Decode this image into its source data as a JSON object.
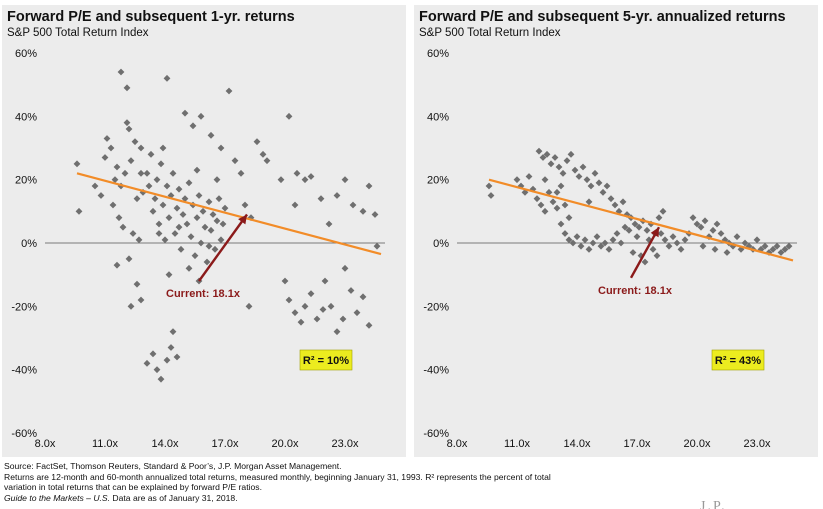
{
  "chart_data": [
    {
      "type": "scatter",
      "title": "Forward P/E and subsequent 1-yr. returns",
      "subtitle": "S&P 500 Total Return Index",
      "xlabel": "",
      "ylabel": "",
      "xlim": [
        8,
        25
      ],
      "ylim": [
        -60,
        60
      ],
      "x_ticks": [
        8,
        11,
        14,
        17,
        20,
        23
      ],
      "x_tick_labels": [
        "8.0x",
        "11.0x",
        "14.0x",
        "17.0x",
        "20.0x",
        "23.0x"
      ],
      "y_ticks": [
        60,
        40,
        20,
        0,
        -20,
        -40,
        -60
      ],
      "y_tick_labels": [
        "60%",
        "40%",
        "20%",
        "0%",
        "-20%",
        "-40%",
        "-60%"
      ],
      "trendline": {
        "x": [
          9.6,
          24.8
        ],
        "y": [
          22,
          -3.5
        ]
      },
      "current": {
        "x": 18.1,
        "label": "Current: 18.1x",
        "arrow_from": [
          15.7,
          -12
        ],
        "arrow_to": [
          18.1,
          9
        ]
      },
      "r_squared_label": "R² = 10%",
      "points": [
        [
          9.6,
          25
        ],
        [
          9.7,
          10
        ],
        [
          10.5,
          18
        ],
        [
          10.8,
          15
        ],
        [
          11,
          27
        ],
        [
          11.1,
          33
        ],
        [
          11.3,
          30
        ],
        [
          11.4,
          12
        ],
        [
          11.5,
          20
        ],
        [
          11.6,
          24
        ],
        [
          11.7,
          8
        ],
        [
          11.8,
          18
        ],
        [
          11.9,
          5
        ],
        [
          12,
          22
        ],
        [
          12.1,
          38
        ],
        [
          12.2,
          36
        ],
        [
          12.3,
          26
        ],
        [
          12.4,
          3
        ],
        [
          12.2,
          -5
        ],
        [
          12.5,
          32
        ],
        [
          12.6,
          14
        ],
        [
          12.7,
          1
        ],
        [
          12.8,
          22
        ],
        [
          12.9,
          16
        ],
        [
          11.6,
          -7
        ],
        [
          11.8,
          54
        ],
        [
          12.1,
          49
        ],
        [
          12.3,
          -20
        ],
        [
          12.6,
          -13
        ],
        [
          12.8,
          -18
        ],
        [
          13.1,
          -38
        ],
        [
          13.4,
          -35
        ],
        [
          13.6,
          -40
        ],
        [
          13.8,
          -43
        ],
        [
          14.1,
          -37
        ],
        [
          14.3,
          -33
        ],
        [
          14.6,
          -36
        ],
        [
          14.4,
          -28
        ],
        [
          14,
          1
        ],
        [
          14.1,
          52
        ],
        [
          13.1,
          22
        ],
        [
          13.2,
          18
        ],
        [
          13.3,
          28
        ],
        [
          13.4,
          10
        ],
        [
          13.5,
          14
        ],
        [
          13.6,
          20
        ],
        [
          13.7,
          6
        ],
        [
          13.8,
          25
        ],
        [
          13.9,
          12
        ],
        [
          14.1,
          18
        ],
        [
          14.2,
          8
        ],
        [
          14.3,
          15
        ],
        [
          14.4,
          22
        ],
        [
          14.5,
          3
        ],
        [
          14.6,
          11
        ],
        [
          14.7,
          17
        ],
        [
          14.8,
          -2
        ],
        [
          14.9,
          9
        ],
        [
          15,
          14
        ],
        [
          15.1,
          6
        ],
        [
          15.2,
          19
        ],
        [
          15.3,
          2
        ],
        [
          15.4,
          12
        ],
        [
          15.5,
          -4
        ],
        [
          15.6,
          8
        ],
        [
          15.7,
          15
        ],
        [
          15.8,
          0
        ],
        [
          15.9,
          10
        ],
        [
          16,
          5
        ],
        [
          16.1,
          -6
        ],
        [
          16.2,
          13
        ],
        [
          16.3,
          4
        ],
        [
          16.4,
          9
        ],
        [
          16.5,
          -2
        ],
        [
          16.6,
          7
        ],
        [
          16.7,
          14
        ],
        [
          16.8,
          1
        ],
        [
          16.9,
          6
        ],
        [
          17,
          11
        ],
        [
          13.7,
          3
        ],
        [
          14.2,
          -10
        ],
        [
          14.7,
          5
        ],
        [
          15.2,
          -8
        ],
        [
          15.7,
          -12
        ],
        [
          16.2,
          -1
        ],
        [
          15,
          41
        ],
        [
          15.4,
          37
        ],
        [
          15.8,
          40
        ],
        [
          16.3,
          34
        ],
        [
          16.8,
          30
        ],
        [
          17.2,
          48
        ],
        [
          17.5,
          26
        ],
        [
          17.8,
          22
        ],
        [
          18,
          12
        ],
        [
          18.3,
          8
        ],
        [
          18.6,
          32
        ],
        [
          18.9,
          28
        ],
        [
          19.1,
          26
        ],
        [
          18.2,
          -20
        ],
        [
          19.8,
          20
        ],
        [
          20.2,
          40
        ],
        [
          20.6,
          22
        ],
        [
          21,
          20
        ],
        [
          21.3,
          21
        ],
        [
          20.5,
          12
        ],
        [
          21.8,
          14
        ],
        [
          22.2,
          6
        ],
        [
          22.6,
          15
        ],
        [
          23,
          20
        ],
        [
          23.4,
          12
        ],
        [
          23.9,
          10
        ],
        [
          24.2,
          18
        ],
        [
          24.5,
          9
        ],
        [
          20,
          -12
        ],
        [
          20.2,
          -18
        ],
        [
          20.5,
          -22
        ],
        [
          20.8,
          -25
        ],
        [
          21,
          -20
        ],
        [
          21.3,
          -16
        ],
        [
          21.6,
          -24
        ],
        [
          22,
          -12
        ],
        [
          22.3,
          -20
        ],
        [
          22.6,
          -28
        ],
        [
          23,
          -8
        ],
        [
          23.3,
          -15
        ],
        [
          23.6,
          -22
        ],
        [
          23.9,
          -17
        ],
        [
          24.2,
          -26
        ],
        [
          24.6,
          -1
        ],
        [
          22.9,
          -24
        ],
        [
          21.9,
          -21
        ],
        [
          12.8,
          30
        ],
        [
          13.9,
          30
        ],
        [
          15.6,
          23
        ],
        [
          16.6,
          20
        ]
      ]
    },
    {
      "type": "scatter",
      "title": "Forward P/E and subsequent 5-yr. annualized returns",
      "subtitle": "S&P 500 Total Return Index",
      "xlabel": "",
      "ylabel": "",
      "xlim": [
        8,
        25
      ],
      "ylim": [
        -60,
        60
      ],
      "x_ticks": [
        8,
        11,
        14,
        17,
        20,
        23
      ],
      "x_tick_labels": [
        "8.0x",
        "11.0x",
        "14.0x",
        "17.0x",
        "20.0x",
        "23.0x"
      ],
      "y_ticks": [
        60,
        40,
        20,
        0,
        -20,
        -40,
        -60
      ],
      "y_tick_labels": [
        "60%",
        "40%",
        "20%",
        "0%",
        "-20%",
        "-40%",
        "-60%"
      ],
      "trendline": {
        "x": [
          9.6,
          24.8
        ],
        "y": [
          20,
          -5.5
        ]
      },
      "current": {
        "x": 18.1,
        "label": "Current: 18.1x",
        "arrow_from": [
          16.7,
          -11
        ],
        "arrow_to": [
          18.1,
          5
        ]
      },
      "r_squared_label": "R² = 43%",
      "points": [
        [
          9.6,
          18
        ],
        [
          9.7,
          15
        ],
        [
          11,
          20
        ],
        [
          11.2,
          18
        ],
        [
          11.4,
          16
        ],
        [
          11.6,
          21
        ],
        [
          11.8,
          17
        ],
        [
          12,
          14
        ],
        [
          12.2,
          12
        ],
        [
          12.4,
          10
        ],
        [
          12.6,
          16
        ],
        [
          12.8,
          13
        ],
        [
          13,
          11
        ],
        [
          13.2,
          18
        ],
        [
          13.4,
          12
        ],
        [
          13.6,
          8
        ],
        [
          12.1,
          29
        ],
        [
          12.3,
          27
        ],
        [
          12.5,
          28
        ],
        [
          12.7,
          25
        ],
        [
          12.9,
          27
        ],
        [
          13.1,
          24
        ],
        [
          13.3,
          22
        ],
        [
          13.5,
          26
        ],
        [
          13.7,
          28
        ],
        [
          13.9,
          23
        ],
        [
          14.1,
          21
        ],
        [
          14.3,
          24
        ],
        [
          14.5,
          20
        ],
        [
          14.7,
          18
        ],
        [
          14.9,
          22
        ],
        [
          15.1,
          19
        ],
        [
          15.3,
          16
        ],
        [
          15.5,
          18
        ],
        [
          15.7,
          14
        ],
        [
          15.9,
          12
        ],
        [
          16.1,
          10
        ],
        [
          16.3,
          13
        ],
        [
          16.5,
          9
        ],
        [
          16.7,
          8
        ],
        [
          16.9,
          6
        ],
        [
          17.1,
          5
        ],
        [
          17.3,
          7
        ],
        [
          17.5,
          4
        ],
        [
          17.7,
          6
        ],
        [
          17.9,
          3
        ],
        [
          18.1,
          8
        ],
        [
          18.3,
          10
        ],
        [
          13.2,
          6
        ],
        [
          13.4,
          3
        ],
        [
          13.6,
          1
        ],
        [
          13.8,
          0
        ],
        [
          14,
          2
        ],
        [
          14.2,
          -1
        ],
        [
          14.4,
          1
        ],
        [
          14.6,
          -2
        ],
        [
          14.8,
          0
        ],
        [
          15,
          2
        ],
        [
          15.2,
          -1
        ],
        [
          15.4,
          0
        ],
        [
          15.6,
          -2
        ],
        [
          15.8,
          1
        ],
        [
          16,
          3
        ],
        [
          16.2,
          0
        ],
        [
          16.4,
          5
        ],
        [
          16.6,
          4
        ],
        [
          16.8,
          -3
        ],
        [
          17,
          2
        ],
        [
          17.2,
          -4
        ],
        [
          17.4,
          -6
        ],
        [
          17.6,
          1
        ],
        [
          17.8,
          -2
        ],
        [
          18,
          -4
        ],
        [
          18.2,
          3
        ],
        [
          18.4,
          1
        ],
        [
          18.6,
          -1
        ],
        [
          18.8,
          2
        ],
        [
          19,
          0
        ],
        [
          19.2,
          -2
        ],
        [
          19.4,
          1
        ],
        [
          19.6,
          3
        ],
        [
          19.8,
          8
        ],
        [
          20,
          6
        ],
        [
          20.2,
          5
        ],
        [
          20.4,
          7
        ],
        [
          20.6,
          2
        ],
        [
          20.8,
          4
        ],
        [
          21,
          6
        ],
        [
          21.2,
          3
        ],
        [
          21.4,
          1
        ],
        [
          21.6,
          0
        ],
        [
          21.8,
          -1
        ],
        [
          22,
          2
        ],
        [
          22.2,
          -2
        ],
        [
          22.4,
          0
        ],
        [
          22.6,
          -1
        ],
        [
          22.8,
          -2
        ],
        [
          23,
          1
        ],
        [
          23.2,
          -2
        ],
        [
          23.4,
          -1
        ],
        [
          23.6,
          -3
        ],
        [
          23.8,
          -2
        ],
        [
          24,
          -1
        ],
        [
          24.2,
          -3
        ],
        [
          24.4,
          -2
        ],
        [
          24.6,
          -1
        ],
        [
          20.3,
          -1
        ],
        [
          20.9,
          -2
        ],
        [
          21.5,
          -3
        ],
        [
          12.4,
          20
        ],
        [
          13,
          16
        ],
        [
          14.6,
          13
        ]
      ]
    }
  ],
  "footer": {
    "source_line": "Source: FactSet, Thomson Reuters, Standard & Poor’s, J.P. Morgan Asset Management.",
    "returns_line1": "Returns are 12-month and 60-month annualized total returns, measured monthly, beginning January 31, 1993. R² represents the percent of total",
    "returns_line2": "variation in total returns that can be explained by forward P/E ratios.",
    "guide_italic": "Guide to the Markets – U.S.",
    "guide_rest": " Data are as of January 31, 2018.",
    "logo_text": "J.P. Morgan"
  },
  "colors": {
    "point": "#6f6f6f",
    "trendline": "#f28c28",
    "arrow": "#8b1a1a",
    "current_label": "#8b1a1a",
    "r2_box": "#ecec1f",
    "panel_bg": "#ececec"
  }
}
